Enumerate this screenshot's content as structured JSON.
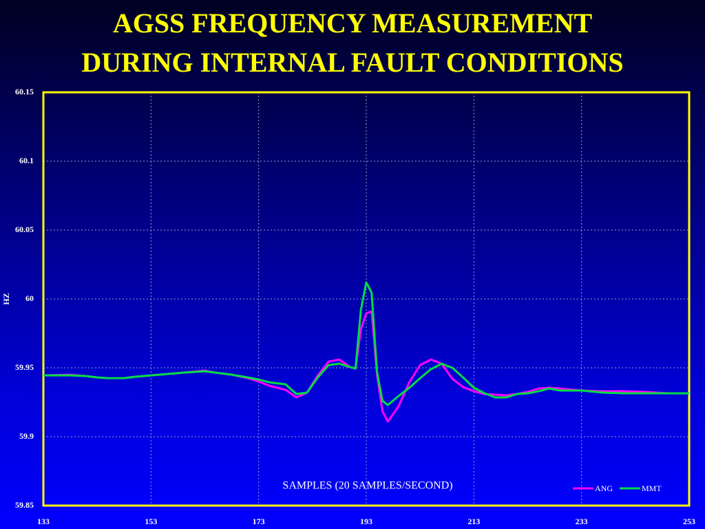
{
  "chart_data": {
    "type": "line",
    "title_lines": [
      "AGSS FREQUENCY MEASUREMENT",
      "DURING INTERNAL FAULT CONDITIONS"
    ],
    "y_label": "HZ",
    "annotation": "SAMPLES (20 SAMPLES/SECOND)",
    "x": [
      133,
      138,
      141,
      143,
      145,
      148,
      150,
      153,
      156,
      159,
      163,
      165,
      168,
      171,
      173,
      175,
      178,
      180,
      182,
      184,
      186,
      188,
      190,
      191,
      192,
      193,
      194,
      195,
      196,
      197,
      199,
      201,
      203,
      205,
      207,
      209,
      211,
      213,
      215,
      217,
      219,
      221,
      223,
      225,
      227,
      229,
      233,
      237,
      241,
      245,
      249,
      253
    ],
    "series": [
      {
        "name": "ANG",
        "color": "#ff00ff",
        "values": [
          59.9445,
          59.945,
          59.944,
          59.943,
          59.9425,
          59.9425,
          59.9435,
          59.9445,
          59.9455,
          59.9465,
          59.948,
          59.9465,
          59.945,
          59.9425,
          59.94,
          59.937,
          59.934,
          59.9285,
          59.932,
          59.9445,
          59.9545,
          59.956,
          59.9505,
          59.9495,
          59.978,
          59.9895,
          59.991,
          59.945,
          59.9185,
          59.911,
          59.922,
          59.9395,
          59.952,
          59.956,
          59.953,
          59.942,
          59.936,
          59.933,
          59.931,
          59.9305,
          59.93,
          59.931,
          59.9325,
          59.935,
          59.9355,
          59.935,
          59.9335,
          59.933,
          59.933,
          59.9325,
          59.9315,
          59.9315
        ]
      },
      {
        "name": "MMT",
        "color": "#00dd44",
        "values": [
          59.9445,
          59.9445,
          59.944,
          59.943,
          59.9425,
          59.9425,
          59.9435,
          59.9445,
          59.9455,
          59.9465,
          59.9475,
          59.9465,
          59.945,
          59.943,
          59.9415,
          59.9395,
          59.938,
          59.931,
          59.932,
          59.943,
          59.952,
          59.953,
          59.9505,
          59.9495,
          59.992,
          60.012,
          60.0045,
          59.947,
          59.926,
          59.923,
          59.9295,
          59.9355,
          59.9425,
          59.949,
          59.953,
          59.95,
          59.943,
          59.9355,
          59.9315,
          59.9285,
          59.9285,
          59.931,
          59.9315,
          59.933,
          59.935,
          59.9335,
          59.9335,
          59.932,
          59.9315,
          59.9315,
          59.9315,
          59.9315
        ]
      }
    ],
    "xlim": [
      133,
      253
    ],
    "xticks": [
      133,
      153,
      173,
      193,
      213,
      233,
      253
    ],
    "ylim": [
      59.85,
      60.15
    ],
    "yticks": [
      59.85,
      59.9,
      59.95,
      60,
      60.05,
      60.1,
      60.15
    ],
    "grid": true,
    "legend": "lower-right",
    "frame_color": "#ffff00"
  }
}
